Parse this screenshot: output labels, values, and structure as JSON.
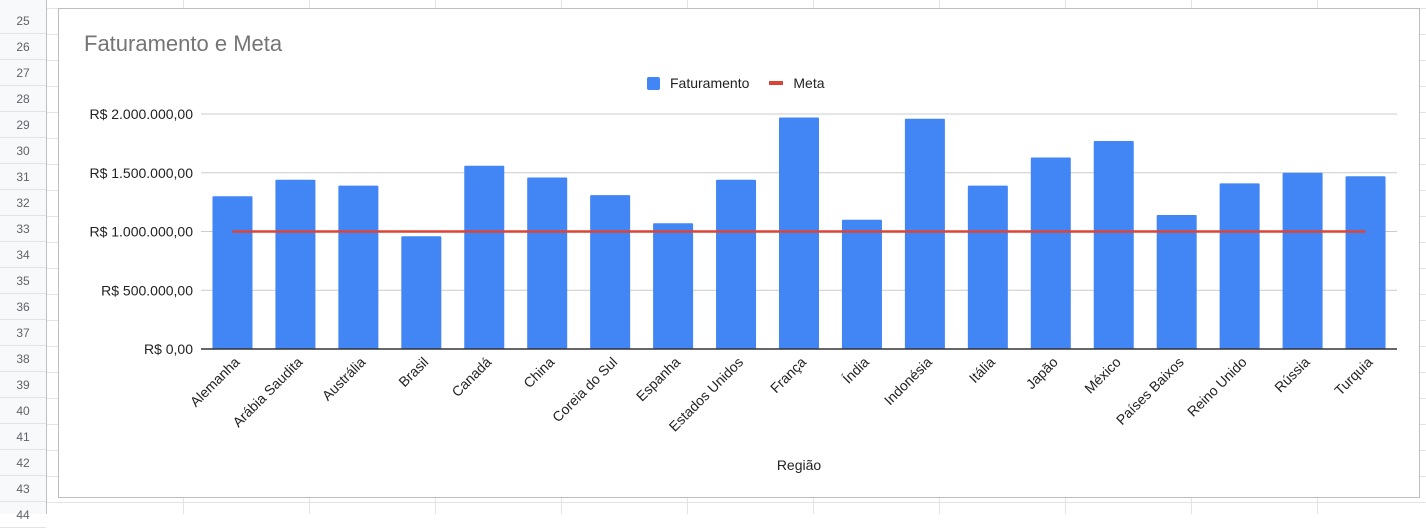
{
  "spreadsheet": {
    "row_numbers": [
      "25",
      "26",
      "27",
      "28",
      "29",
      "30",
      "31",
      "32",
      "33",
      "34",
      "35",
      "36",
      "37",
      "38",
      "39",
      "40",
      "41",
      "42",
      "43",
      "44"
    ]
  },
  "colors": {
    "bar": "#4285f4",
    "meta_line": "#db4437",
    "title": "#757575",
    "gridline": "#cccccc",
    "axis": "#333333"
  },
  "chart_data": {
    "type": "bar",
    "title": "Faturamento e Meta",
    "xlabel": "Região",
    "ylabel": "",
    "ylim": [
      0,
      2000000
    ],
    "yticks": [
      0,
      500000,
      1000000,
      1500000,
      2000000
    ],
    "ytick_labels": [
      "R$ 0,00",
      "R$ 500.000,00",
      "R$ 1.000.000,00",
      "R$ 1.500.000,00",
      "R$ 2.000.000,00"
    ],
    "legend_position": "top",
    "grid": true,
    "categories": [
      "Alemanha",
      "Arábia Saudita",
      "Austrália",
      "Brasil",
      "Canadá",
      "China",
      "Coreia do Sul",
      "Espanha",
      "Estados Unidos",
      "França",
      "Índia",
      "Indonésia",
      "Itália",
      "Japão",
      "México",
      "Países Baixos",
      "Reino Unido",
      "Rússia",
      "Turquia"
    ],
    "series": [
      {
        "name": "Faturamento",
        "type": "bar",
        "values": [
          1300000,
          1440000,
          1390000,
          960000,
          1560000,
          1460000,
          1310000,
          1070000,
          1440000,
          1970000,
          1100000,
          1960000,
          1390000,
          1630000,
          1770000,
          1140000,
          1410000,
          1500000,
          1470000
        ]
      },
      {
        "name": "Meta",
        "type": "line",
        "values": [
          1000000,
          1000000,
          1000000,
          1000000,
          1000000,
          1000000,
          1000000,
          1000000,
          1000000,
          1000000,
          1000000,
          1000000,
          1000000,
          1000000,
          1000000,
          1000000,
          1000000,
          1000000,
          1000000
        ]
      }
    ]
  }
}
